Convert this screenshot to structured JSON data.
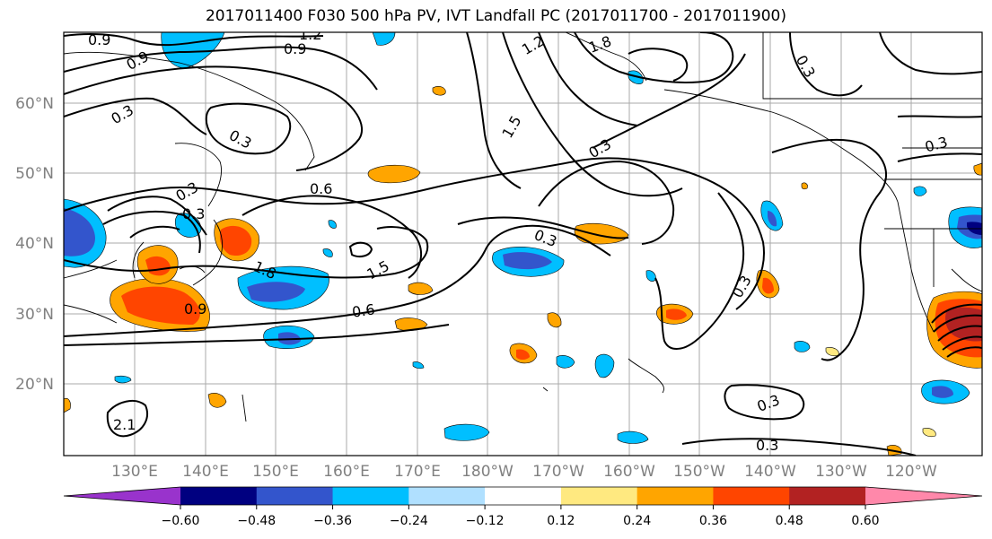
{
  "title": "2017011400 F030 500 hPa PV, IVT Landfall PC (2017011700 - 2017011900)",
  "lat_labels": [
    "60°N",
    "50°N",
    "40°N",
    "30°N",
    "20°N"
  ],
  "lon_labels": [
    "130°E",
    "140°E",
    "150°E",
    "160°E",
    "170°E",
    "180°W",
    "170°W",
    "160°W",
    "150°W",
    "140°W",
    "130°W",
    "120°W"
  ],
  "contour_labels": [
    "0.9",
    "0.9",
    "0.9",
    "1.2",
    "1.2",
    "1.8",
    "0.3",
    "0.3",
    "0.3",
    "0.3",
    "0.6",
    "0.3",
    "0.3",
    "1.5",
    "1.8",
    "1.5",
    "0.9",
    "0.6",
    "0.3",
    "0.3",
    "0.3",
    "0.3",
    "0.3",
    "2.1"
  ],
  "colorbar": {
    "tick_labels": [
      "−0.60",
      "−0.48",
      "−0.36",
      "−0.24",
      "−0.12",
      "0.12",
      "0.24",
      "0.36",
      "0.48",
      "0.60"
    ],
    "colors": [
      "#9933cc",
      "#000080",
      "#3355cc",
      "#00bfff",
      "#b0e0ff",
      "#ffffff",
      "#ffe980",
      "#ffa500",
      "#ff4500",
      "#b22222",
      "#ff88aa"
    ]
  }
}
